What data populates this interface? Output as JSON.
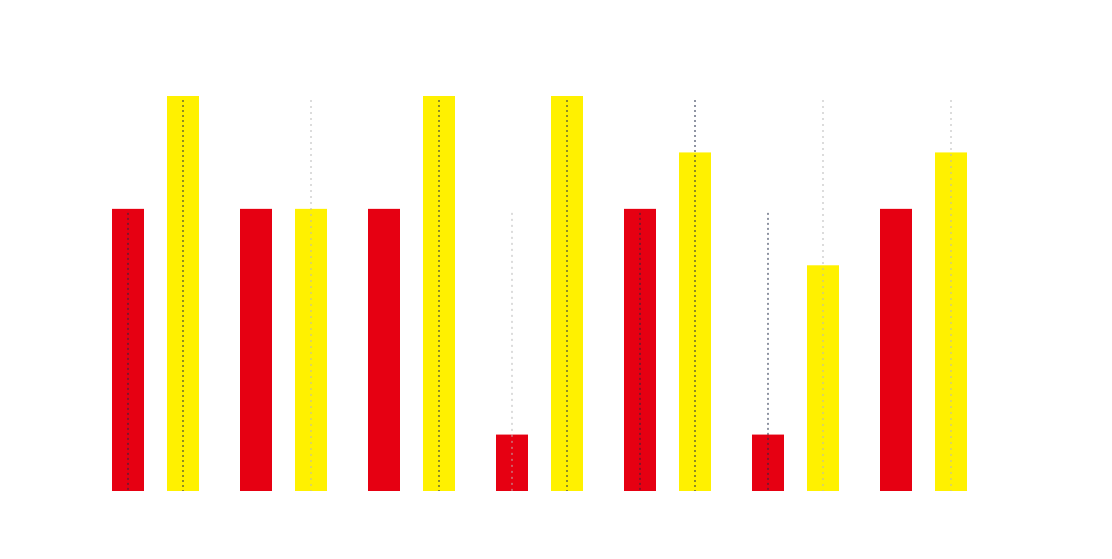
{
  "chart_data": {
    "type": "bar",
    "categories": [
      "",
      "",
      "",
      "",
      "",
      "",
      ""
    ],
    "series": [
      {
        "color": "#e60012",
        "values": [
          5.0,
          5.0,
          5.0,
          1.0,
          5.0,
          1.0,
          5.0
        ],
        "dotted_lines": [
          5.0,
          5.0,
          5.0,
          5.0,
          5.0,
          5.0,
          5.0
        ],
        "line_style": [
          "dark",
          "none",
          "none",
          "light",
          "dark",
          "dark",
          "none"
        ]
      },
      {
        "color": "#fff100",
        "values": [
          7.0,
          5.0,
          7.0,
          7.0,
          6.0,
          4.0,
          6.0
        ],
        "dotted_lines": [
          7.0,
          7.0,
          7.0,
          7.0,
          7.0,
          7.0,
          7.0
        ],
        "line_style": [
          "dark",
          "light",
          "dark",
          "dark",
          "dark",
          "light",
          "light"
        ]
      }
    ],
    "ylim": [
      0,
      7
    ],
    "grid": false,
    "legend": "none",
    "title": "",
    "xlabel": "",
    "ylabel": ""
  }
}
